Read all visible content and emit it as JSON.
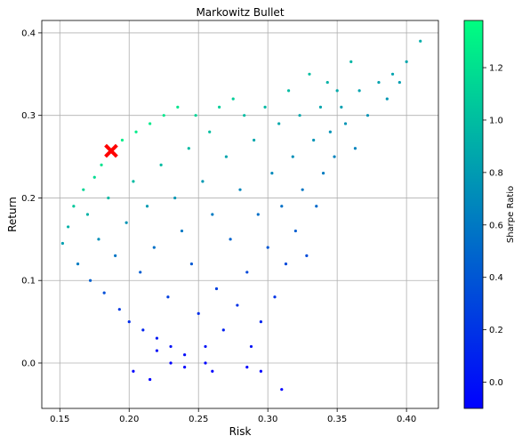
{
  "chart_data": {
    "type": "scatter",
    "title": "Markowitz Bullet",
    "xlabel": "Risk",
    "ylabel": "Return",
    "xlim": [
      0.137,
      0.423
    ],
    "ylim": [
      -0.055,
      0.415
    ],
    "xticks": [
      0.15,
      0.2,
      0.25,
      0.3,
      0.35,
      0.4
    ],
    "xtick_labels": [
      "0.15",
      "0.20",
      "0.25",
      "0.30",
      "0.35",
      "0.40"
    ],
    "yticks": [
      0.0,
      0.1,
      0.2,
      0.3,
      0.4
    ],
    "ytick_labels": [
      "0.0",
      "0.1",
      "0.2",
      "0.3",
      "0.4"
    ],
    "grid": true,
    "colorbar": {
      "label": "Sharpe Ratio",
      "colormap": "winter",
      "range": [
        -0.1,
        1.38
      ],
      "ticks": [
        0.0,
        0.2,
        0.4,
        0.6,
        0.8,
        1.0,
        1.2
      ],
      "tick_labels": [
        "0.0",
        "0.2",
        "0.4",
        "0.6",
        "0.8",
        "1.0",
        "1.2"
      ],
      "color_low": "#0000ff",
      "color_high": "#00ff80"
    },
    "highlight": {
      "name": "max-sharpe-marker",
      "x": 0.187,
      "y": 0.257,
      "color": "#ff0000",
      "marker": "X"
    },
    "series": [
      {
        "points": [
          [
            0.152,
            0.145
          ],
          [
            0.156,
            0.165
          ],
          [
            0.16,
            0.19
          ],
          [
            0.163,
            0.12
          ],
          [
            0.167,
            0.21
          ],
          [
            0.17,
            0.18
          ],
          [
            0.172,
            0.1
          ],
          [
            0.175,
            0.225
          ],
          [
            0.178,
            0.15
          ],
          [
            0.18,
            0.24
          ],
          [
            0.182,
            0.085
          ],
          [
            0.185,
            0.2
          ],
          [
            0.188,
            0.255
          ],
          [
            0.19,
            0.13
          ],
          [
            0.193,
            0.065
          ],
          [
            0.195,
            0.27
          ],
          [
            0.198,
            0.17
          ],
          [
            0.2,
            0.05
          ],
          [
            0.203,
            0.22
          ],
          [
            0.205,
            0.28
          ],
          [
            0.208,
            0.11
          ],
          [
            0.21,
            0.04
          ],
          [
            0.213,
            0.19
          ],
          [
            0.215,
            0.29
          ],
          [
            0.218,
            0.14
          ],
          [
            0.22,
            0.03
          ],
          [
            0.223,
            0.24
          ],
          [
            0.225,
            0.3
          ],
          [
            0.228,
            0.08
          ],
          [
            0.23,
            0.02
          ],
          [
            0.233,
            0.2
          ],
          [
            0.235,
            0.31
          ],
          [
            0.238,
            0.16
          ],
          [
            0.24,
            0.01
          ],
          [
            0.243,
            0.26
          ],
          [
            0.245,
            0.12
          ],
          [
            0.248,
            0.3
          ],
          [
            0.25,
            0.06
          ],
          [
            0.253,
            0.22
          ],
          [
            0.255,
            0.0
          ],
          [
            0.258,
            0.28
          ],
          [
            0.26,
            0.18
          ],
          [
            0.263,
            0.09
          ],
          [
            0.265,
            0.31
          ],
          [
            0.268,
            0.04
          ],
          [
            0.27,
            0.25
          ],
          [
            0.273,
            0.15
          ],
          [
            0.275,
            0.32
          ],
          [
            0.278,
            0.07
          ],
          [
            0.28,
            0.21
          ],
          [
            0.283,
            0.3
          ],
          [
            0.285,
            0.11
          ],
          [
            0.288,
            0.02
          ],
          [
            0.29,
            0.27
          ],
          [
            0.293,
            0.18
          ],
          [
            0.295,
            0.05
          ],
          [
            0.298,
            0.31
          ],
          [
            0.3,
            0.14
          ],
          [
            0.303,
            0.23
          ],
          [
            0.305,
            0.08
          ],
          [
            0.308,
            0.29
          ],
          [
            0.31,
            0.19
          ],
          [
            0.313,
            0.12
          ],
          [
            0.315,
            0.33
          ],
          [
            0.318,
            0.25
          ],
          [
            0.32,
            0.16
          ],
          [
            0.323,
            0.3
          ],
          [
            0.325,
            0.21
          ],
          [
            0.328,
            0.13
          ],
          [
            0.33,
            0.35
          ],
          [
            0.333,
            0.27
          ],
          [
            0.335,
            0.19
          ],
          [
            0.338,
            0.31
          ],
          [
            0.34,
            0.23
          ],
          [
            0.343,
            0.34
          ],
          [
            0.345,
            0.28
          ],
          [
            0.348,
            0.25
          ],
          [
            0.35,
            0.33
          ],
          [
            0.353,
            0.31
          ],
          [
            0.356,
            0.29
          ],
          [
            0.36,
            0.365
          ],
          [
            0.363,
            0.26
          ],
          [
            0.366,
            0.33
          ],
          [
            0.372,
            0.3
          ],
          [
            0.38,
            0.34
          ],
          [
            0.386,
            0.32
          ],
          [
            0.39,
            0.35
          ],
          [
            0.395,
            0.34
          ],
          [
            0.4,
            0.365
          ],
          [
            0.41,
            0.39
          ],
          [
            0.203,
            -0.01
          ],
          [
            0.215,
            -0.02
          ],
          [
            0.24,
            -0.005
          ],
          [
            0.26,
            -0.01
          ],
          [
            0.285,
            -0.005
          ],
          [
            0.31,
            -0.032
          ],
          [
            0.295,
            -0.01
          ],
          [
            0.255,
            0.02
          ],
          [
            0.23,
            0.0
          ],
          [
            0.22,
            0.015
          ]
        ]
      }
    ]
  }
}
